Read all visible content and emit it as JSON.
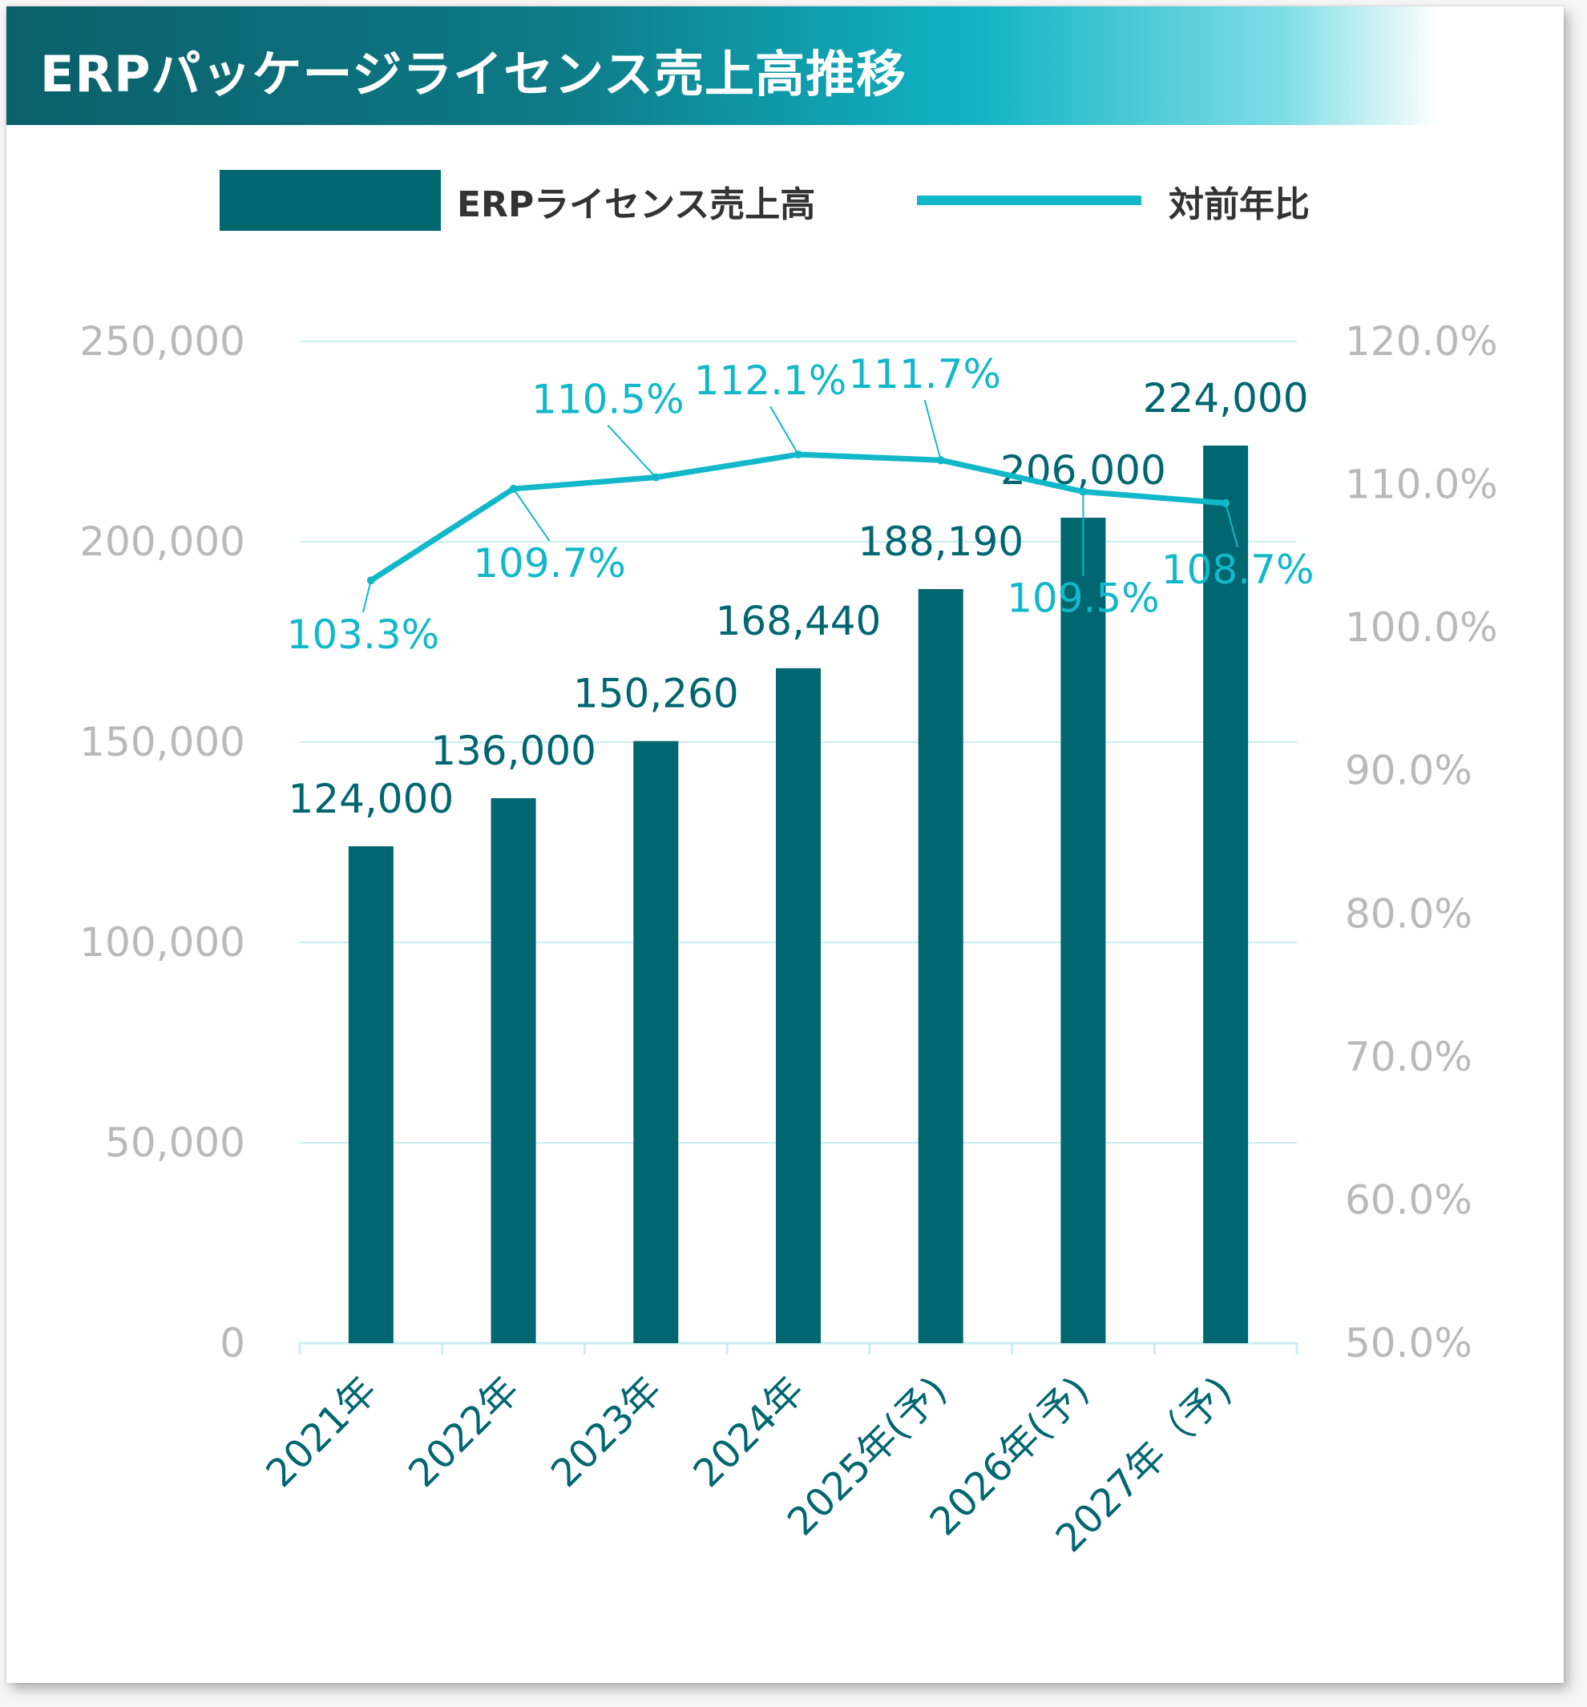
{
  "title": "ERPパッケージライセンス売上高推移",
  "colors": {
    "bar": "#006670",
    "line": "#12b8c9",
    "grid": "#c9eef3",
    "tick": "#b9b9b9",
    "xlabel": "#006670"
  },
  "legend": {
    "bar_label": "ERPライセンス売上高",
    "line_label": "対前年比"
  },
  "chart_data": {
    "type": "bar+line",
    "categories": [
      "2021年",
      "2022年",
      "2023年",
      "2024年",
      "2025年(予)",
      "2026年(予)",
      "2027年（予)"
    ],
    "series": [
      {
        "name": "ERPライセンス売上高",
        "type": "bar",
        "axis": "left",
        "values": [
          124000,
          136000,
          150260,
          168440,
          188190,
          206000,
          224000
        ],
        "labels": [
          "124,000",
          "136,000",
          "150,260",
          "168,440",
          "188,190",
          "206,000",
          "224,000"
        ]
      },
      {
        "name": "対前年比",
        "type": "line",
        "axis": "right",
        "values": [
          103.3,
          109.7,
          110.5,
          112.1,
          111.7,
          109.5,
          108.7
        ],
        "labels": [
          "103.3%",
          "109.7%",
          "110.5%",
          "112.1%",
          "111.7%",
          "109.5%",
          "108.7%"
        ]
      }
    ],
    "y_left": {
      "min": 0,
      "max": 250000,
      "ticks": [
        "0",
        "50,000",
        "100,000",
        "150,000",
        "200,000",
        "250,000"
      ]
    },
    "y_right": {
      "min": 50,
      "max": 120,
      "ticks": [
        "50.0%",
        "60.0%",
        "70.0%",
        "80.0%",
        "90.0%",
        "100.0%",
        "110.0%",
        "120.0%"
      ]
    },
    "grid": true,
    "legend_position": "top"
  }
}
